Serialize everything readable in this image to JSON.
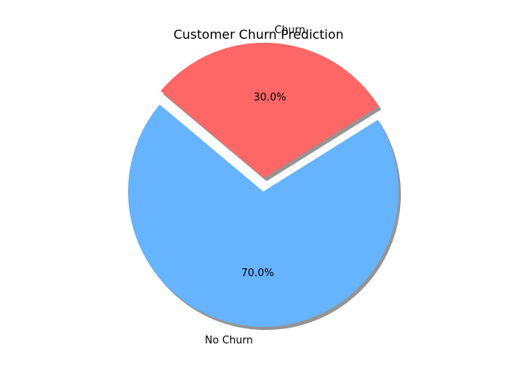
{
  "chart_data": {
    "type": "pie",
    "title": "Customer Churn Prediction",
    "labels": [
      "No Churn",
      "Churn"
    ],
    "values": [
      70,
      30
    ],
    "percent_labels": [
      "70.0%",
      "30.0%"
    ],
    "colors": [
      "#66b3ff",
      "#ff6666"
    ],
    "explode": [
      0,
      0.1
    ],
    "start_angle_deg": 140,
    "shadow": true
  }
}
